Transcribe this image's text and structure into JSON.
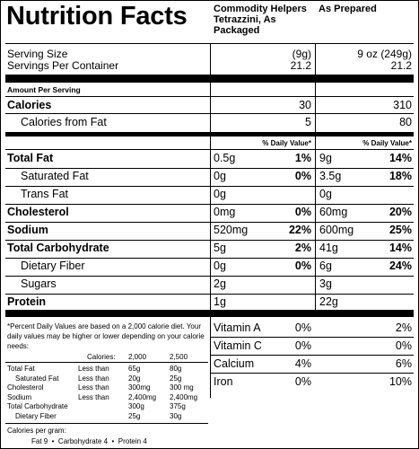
{
  "title": "Nutrition Facts",
  "columns": {
    "packaged": "Commodity Helpers Tetrazzini, As Packaged",
    "prepared": "As Prepared"
  },
  "serving_size": {
    "label": "Serving Size",
    "packaged": "(9g)",
    "prepared": "9 oz (249g)"
  },
  "servings_per_container": {
    "label": "Servings Per Container",
    "packaged": "21.2",
    "prepared": "21.2"
  },
  "amount_per_serving": "Amount Per Serving",
  "calories": {
    "label": "Calories",
    "packaged": "30",
    "prepared": "310"
  },
  "calories_from_fat": {
    "label": "Calories from Fat",
    "packaged": "5",
    "prepared": "80"
  },
  "daily_value_header": "% Daily Value*",
  "nutrients": [
    {
      "label": "Total Fat",
      "bold": true,
      "indent": false,
      "pk_amt": "0.5g",
      "pk_dv": "1%",
      "pr_amt": "9g",
      "pr_dv": "14%"
    },
    {
      "label": "Saturated Fat",
      "bold": false,
      "indent": true,
      "pk_amt": "0g",
      "pk_dv": "0%",
      "pr_amt": "3.5g",
      "pr_dv": "18%"
    },
    {
      "label": "Trans Fat",
      "bold": false,
      "indent": true,
      "pk_amt": "0g",
      "pk_dv": "",
      "pr_amt": "0g",
      "pr_dv": ""
    },
    {
      "label": "Cholesterol",
      "bold": true,
      "indent": false,
      "pk_amt": "0mg",
      "pk_dv": "0%",
      "pr_amt": "60mg",
      "pr_dv": "20%"
    },
    {
      "label": "Sodium",
      "bold": true,
      "indent": false,
      "pk_amt": "520mg",
      "pk_dv": "22%",
      "pr_amt": "600mg",
      "pr_dv": "25%"
    },
    {
      "label": "Total Carbohydrate",
      "bold": true,
      "indent": false,
      "pk_amt": "5g",
      "pk_dv": "2%",
      "pr_amt": "41g",
      "pr_dv": "14%"
    },
    {
      "label": "Dietary Fiber",
      "bold": false,
      "indent": true,
      "pk_amt": "0g",
      "pk_dv": "0%",
      "pr_amt": "6g",
      "pr_dv": "24%"
    },
    {
      "label": "Sugars",
      "bold": false,
      "indent": true,
      "pk_amt": "2g",
      "pk_dv": "",
      "pr_amt": "3g",
      "pr_dv": ""
    },
    {
      "label": "Protein",
      "bold": true,
      "indent": false,
      "pk_amt": "1g",
      "pk_dv": "",
      "pr_amt": "22g",
      "pr_dv": ""
    }
  ],
  "footnote": {
    "text": "*Percent Daily Values are based on a 2,000 calorie diet. Your daily values may be higher or lower depending on your calorie needs:",
    "calories_label": "Calories:",
    "cal_2000": "2,000",
    "cal_2500": "2,500",
    "rows": [
      {
        "label": "Total Fat",
        "indent": false,
        "cond": "Less than",
        "v2000": "65g",
        "v2500": "80g"
      },
      {
        "label": "Saturated Fat",
        "indent": true,
        "cond": "Less than",
        "v2000": "20g",
        "v2500": "25g"
      },
      {
        "label": "Cholesterol",
        "indent": false,
        "cond": "Less than",
        "v2000": "300mg",
        "v2500": "300 mg"
      },
      {
        "label": "Sodium",
        "indent": false,
        "cond": "Less than",
        "v2000": "2,400mg",
        "v2500": "2,400mg"
      },
      {
        "label": "Total Carbohydrate",
        "indent": false,
        "cond": "",
        "v2000": "300g",
        "v2500": "375g"
      },
      {
        "label": "Dietary Fiber",
        "indent": true,
        "cond": "",
        "v2000": "25g",
        "v2500": "30g"
      }
    ],
    "calories_per_gram": "Calories per gram:",
    "per_gram": "Fat 9  •  Carbohydrate 4  •  Protein 4"
  },
  "vitamins": [
    {
      "label": "Vitamin A",
      "pk_dv": "0%",
      "pr_dv": "2%"
    },
    {
      "label": "Vitamin C",
      "pk_dv": "0%",
      "pr_dv": "0%"
    },
    {
      "label": "Calcium",
      "pk_dv": "4%",
      "pr_dv": "6%"
    },
    {
      "label": "Iron",
      "pk_dv": "0%",
      "pr_dv": "10%"
    }
  ]
}
